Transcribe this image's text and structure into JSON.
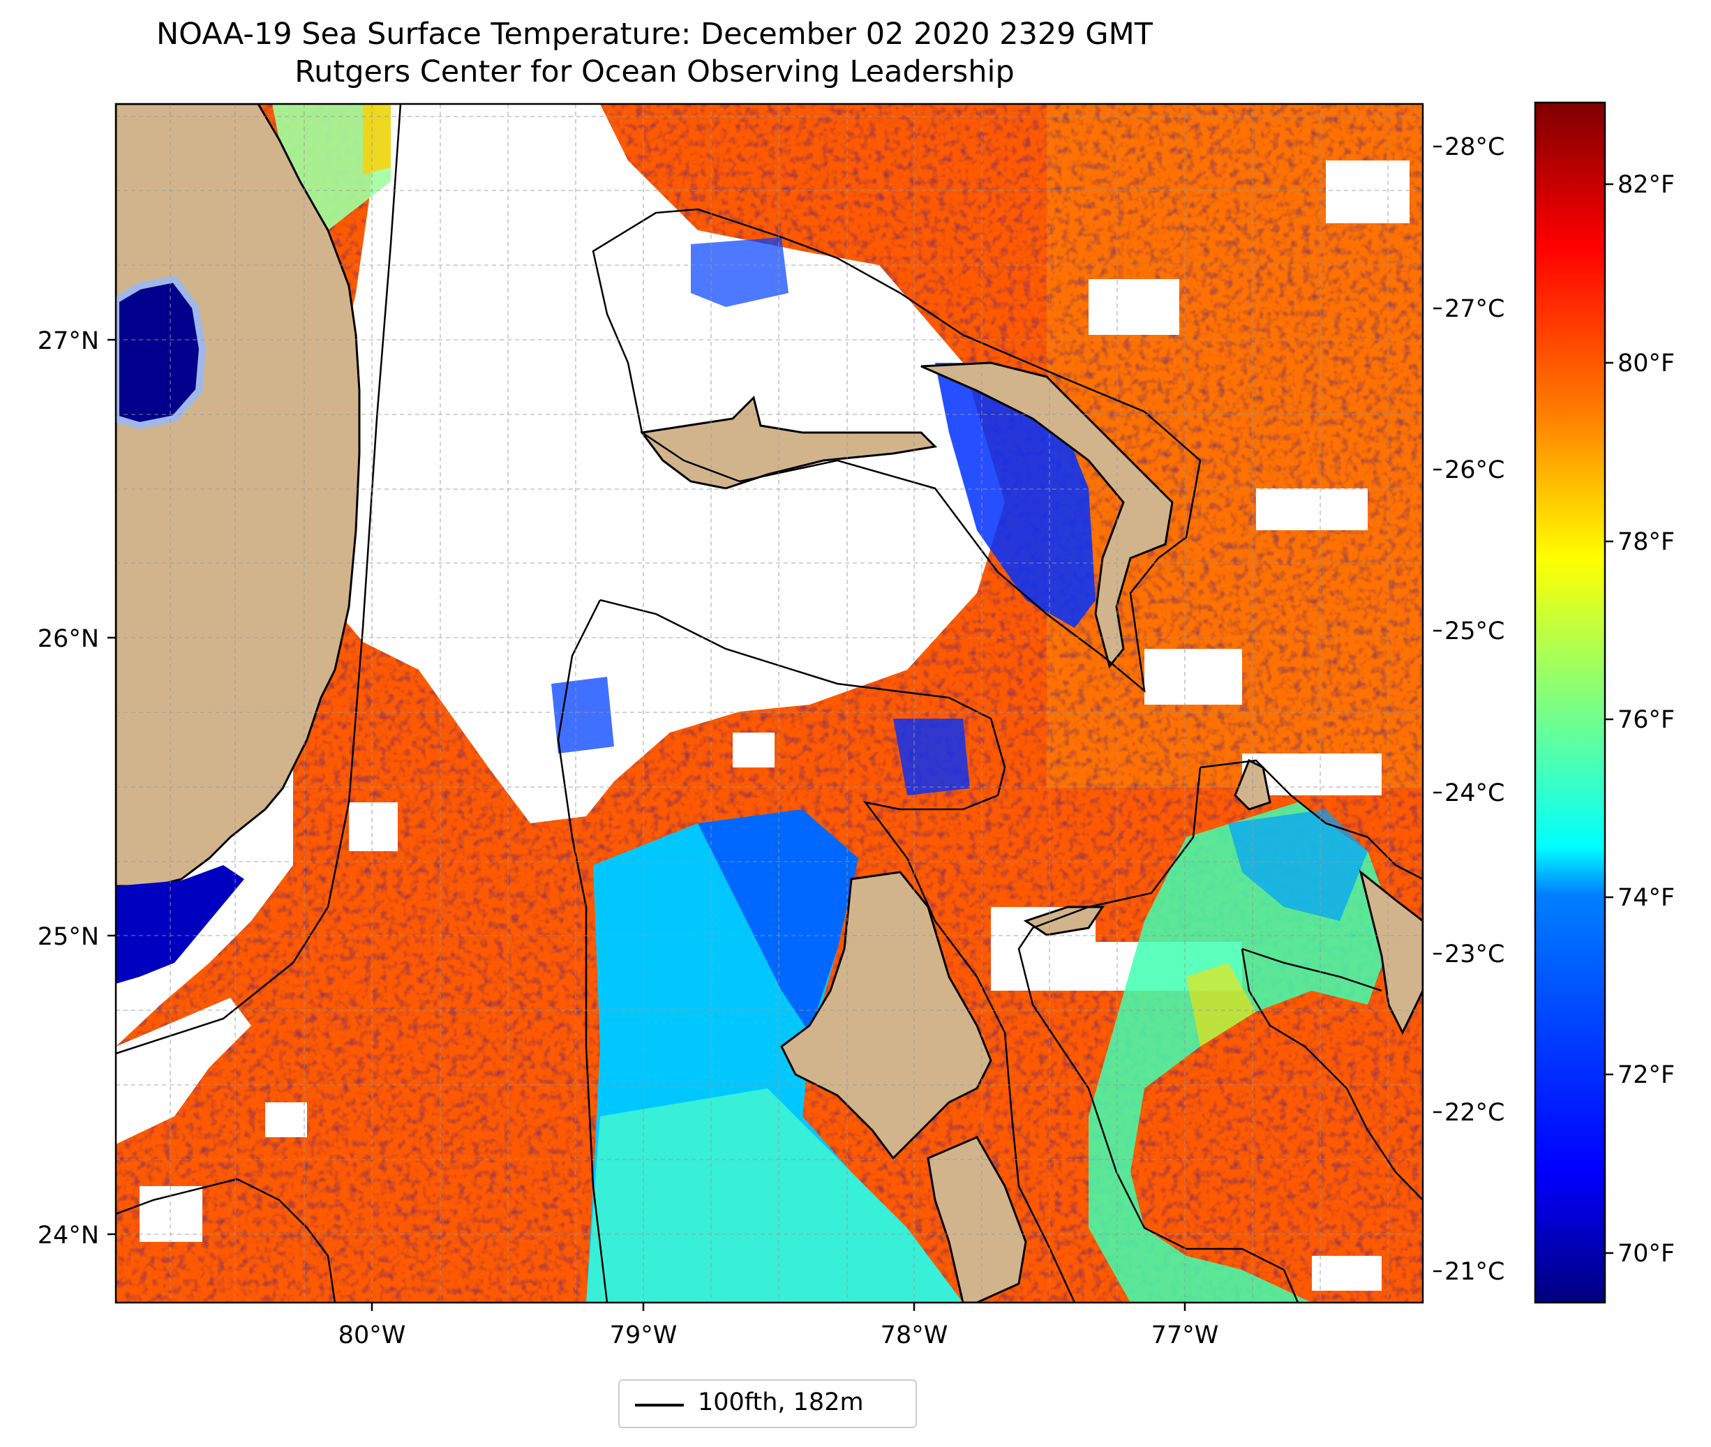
{
  "title": {
    "line1": "NOAA-19 Sea Surface Temperature: December 02 2020 2329 GMT",
    "line2": "Rutgers Center for Ocean Observing Leadership"
  },
  "map": {
    "lon_ticks": [
      "80°W",
      "79°W",
      "78°W",
      "77°W"
    ],
    "lat_ticks": [
      "27°N",
      "26°N",
      "25°N",
      "24°N"
    ],
    "land_color": "#d2b48c",
    "missing_color": "#ffffff",
    "colormap": "jet"
  },
  "colorbar": {
    "celsius_ticks": [
      "28°C",
      "27°C",
      "26°C",
      "25°C",
      "24°C",
      "23°C",
      "22°C",
      "21°C"
    ],
    "fahrenheit_ticks": [
      "82°F",
      "80°F",
      "78°F",
      "76°F",
      "74°F",
      "72°F",
      "70°F"
    ],
    "colors": [
      "#00007f",
      "#0000ff",
      "#007fff",
      "#00ffff",
      "#7fff7f",
      "#ffff00",
      "#ff7f00",
      "#ff0000",
      "#7f0000"
    ]
  },
  "legend": {
    "label": "100fth, 182m",
    "line_color": "#000000"
  }
}
